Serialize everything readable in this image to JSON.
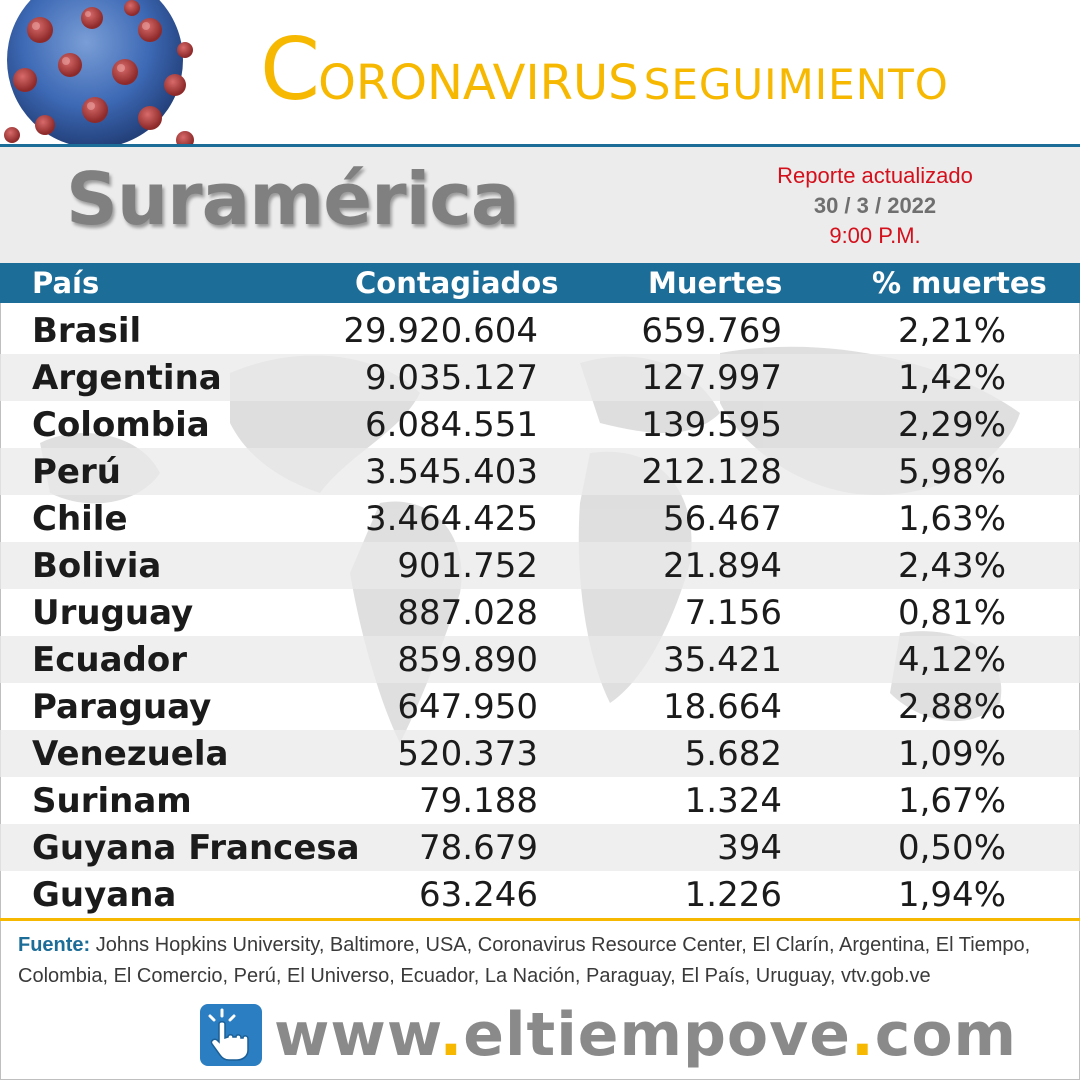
{
  "header": {
    "title_initial": "C",
    "title_rest": "ORONAVIRUS",
    "title_suffix": "SEGUIMIENTO",
    "virus_icon": "coronavirus-icon"
  },
  "subheader": {
    "region": "Suramérica",
    "report_label": "Reporte actualizado",
    "report_date": "30 / 3 / 2022",
    "report_time": "9:00 P.M."
  },
  "table": {
    "columns": [
      "País",
      "Contagiados",
      "Muertes",
      "% muertes"
    ],
    "rows": [
      {
        "country": "Brasil",
        "confirmed": "29.920.604",
        "deaths": "659.769",
        "pct": "2,21%"
      },
      {
        "country": "Argentina",
        "confirmed": "9.035.127",
        "deaths": "127.997",
        "pct": "1,42%"
      },
      {
        "country": "Colombia",
        "confirmed": "6.084.551",
        "deaths": "139.595",
        "pct": "2,29%"
      },
      {
        "country": "Perú",
        "confirmed": "3.545.403",
        "deaths": "212.128",
        "pct": "5,98%"
      },
      {
        "country": "Chile",
        "confirmed": "3.464.425",
        "deaths": "56.467",
        "pct": "1,63%"
      },
      {
        "country": "Bolivia",
        "confirmed": "901.752",
        "deaths": "21.894",
        "pct": "2,43%"
      },
      {
        "country": "Uruguay",
        "confirmed": "887.028",
        "deaths": "7.156",
        "pct": "0,81%"
      },
      {
        "country": "Ecuador",
        "confirmed": "859.890",
        "deaths": "35.421",
        "pct": "4,12%"
      },
      {
        "country": "Paraguay",
        "confirmed": "647.950",
        "deaths": "18.664",
        "pct": "2,88%"
      },
      {
        "country": "Venezuela",
        "confirmed": "520.373",
        "deaths": "5.682",
        "pct": "1,09%"
      },
      {
        "country": "Surinam",
        "confirmed": "79.188",
        "deaths": "1.324",
        "pct": "1,67%"
      },
      {
        "country": "Guyana Francesa",
        "confirmed": "78.679",
        "deaths": "394",
        "pct": "0,50%"
      },
      {
        "country": "Guyana",
        "confirmed": "63.246",
        "deaths": "1.226",
        "pct": "1,94%"
      }
    ]
  },
  "footer": {
    "source_label": "Fuente:",
    "source_text": " Johns Hopkins University, Baltimore, USA, Coronavirus Resource Center,  El Clarín, Argentina, El Tiempo, Colombia, El Comercio, Perú, El Universo, Ecuador, La Nación, Paraguay, El País, Uruguay, vtv.gob.ve",
    "site_part1": "www",
    "site_part2": "eltiempove",
    "site_part3": "com",
    "click_icon": "pointer-hand-icon"
  },
  "colors": {
    "accent_blue": "#1c6d98",
    "accent_gold": "#f6b800",
    "report_red": "#d4101c"
  }
}
